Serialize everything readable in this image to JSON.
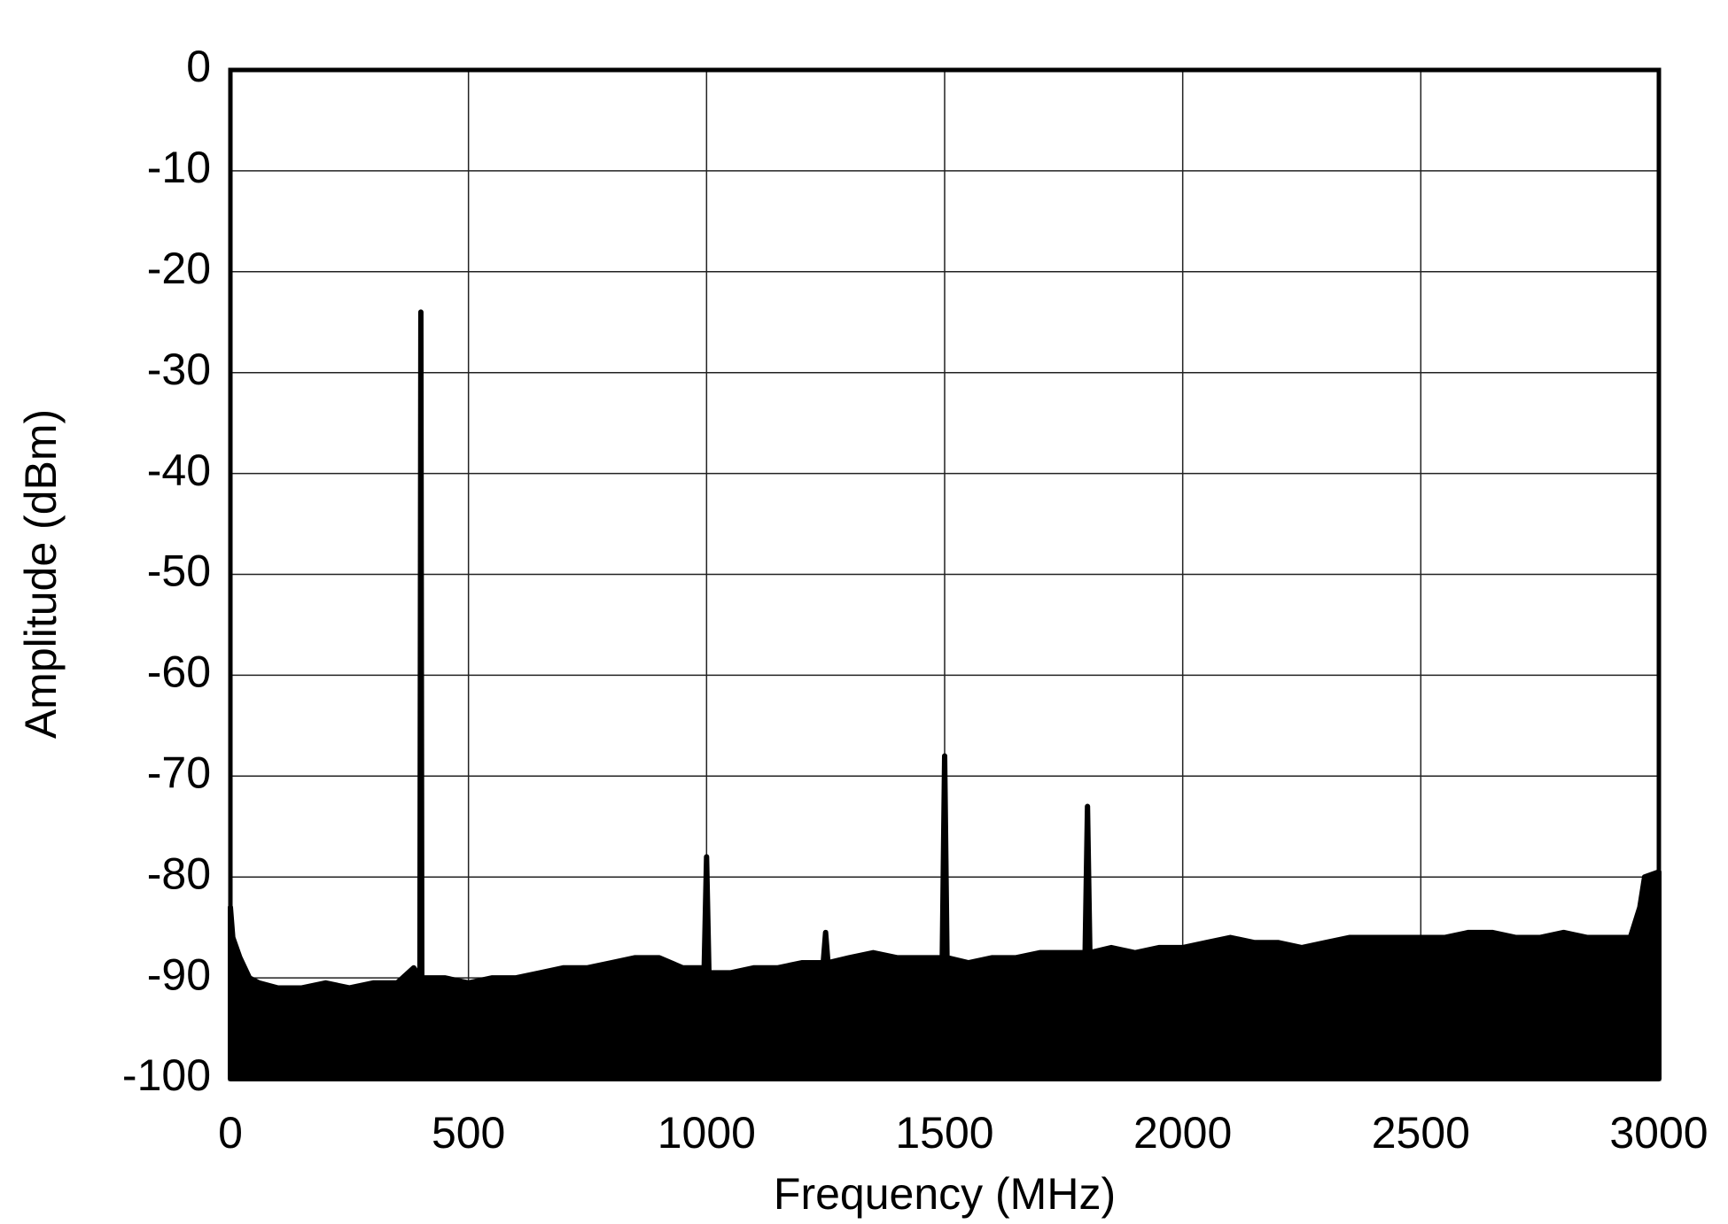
{
  "chart_data": {
    "type": "area",
    "x_label": "Frequency (MHz)",
    "y_label": "Amplitude (dBm)",
    "xlim": [
      0,
      3000
    ],
    "xticks": [
      0,
      500,
      1000,
      1500,
      2000,
      2500,
      3000
    ],
    "ylim": [
      -100,
      0
    ],
    "yticks": [
      0,
      -10,
      -20,
      -30,
      -40,
      -50,
      -60,
      -70,
      -80,
      -90,
      -100
    ],
    "grid": true,
    "x": [
      0,
      5,
      20,
      40,
      60,
      100,
      150,
      200,
      250,
      300,
      350,
      385,
      398,
      400,
      402,
      450,
      500,
      550,
      600,
      650,
      700,
      750,
      800,
      850,
      900,
      950,
      995,
      1000,
      1005,
      1050,
      1100,
      1150,
      1200,
      1245,
      1250,
      1255,
      1300,
      1350,
      1400,
      1450,
      1495,
      1500,
      1505,
      1550,
      1600,
      1650,
      1700,
      1750,
      1795,
      1800,
      1805,
      1850,
      1900,
      1950,
      2000,
      2050,
      2100,
      2150,
      2200,
      2250,
      2300,
      2350,
      2400,
      2450,
      2500,
      2550,
      2600,
      2650,
      2700,
      2750,
      2800,
      2850,
      2900,
      2940,
      2960,
      2970,
      3000
    ],
    "series": [
      {
        "color": "#000000",
        "values": [
          -83,
          -86,
          -88,
          -90,
          -90.5,
          -91,
          -91,
          -90.5,
          -91,
          -90.5,
          -90.5,
          -89,
          -90,
          -24,
          -90,
          -90,
          -90.5,
          -90,
          -90,
          -89.5,
          -89,
          -89,
          -88.5,
          -88,
          -88,
          -89,
          -89,
          -78,
          -89.5,
          -89.5,
          -89,
          -89,
          -88.5,
          -88.5,
          -85.5,
          -88.5,
          -88,
          -87.5,
          -88,
          -88,
          -88,
          -68,
          -88,
          -88.5,
          -88,
          -88,
          -87.5,
          -87.5,
          -87.5,
          -73,
          -87.5,
          -87,
          -87.5,
          -87,
          -87,
          -86.5,
          -86,
          -86.5,
          -86.5,
          -87,
          -86.5,
          -86,
          -86,
          -86,
          -86,
          -86,
          -85.5,
          -85.5,
          -86,
          -86,
          -85.5,
          -86,
          -86,
          -86,
          -83,
          -80,
          -79.5
        ]
      }
    ]
  }
}
